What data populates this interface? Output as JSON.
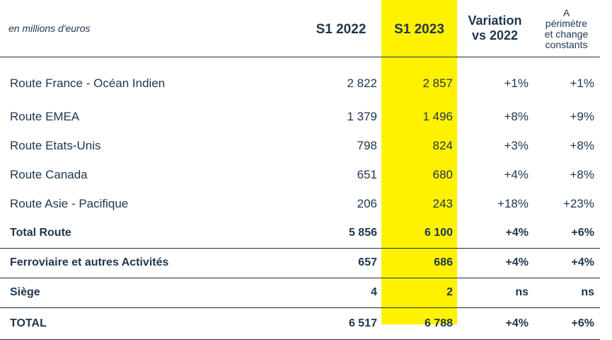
{
  "header": {
    "unit_label": "en millions d'euros",
    "col_s1_2022": "S1 2022",
    "col_s1_2023": "S1 2023",
    "col_variation_line1": "Variation",
    "col_variation_line2": "vs 2022",
    "col_constant_line1": "A",
    "col_constant_line2": "périmètre",
    "col_constant_line3": "et change",
    "col_constant_line4": "constants"
  },
  "rows": [
    {
      "label": "Route France - Océan Indien",
      "s1_2022": "2 822",
      "s1_2023": "2 857",
      "variation": "+1%",
      "constant": "+1%"
    },
    {
      "label": "Route EMEA",
      "s1_2022": "1 379",
      "s1_2023": "1 496",
      "variation": "+8%",
      "constant": "+9%"
    },
    {
      "label": "Route Etats-Unis",
      "s1_2022": "798",
      "s1_2023": "824",
      "variation": "+3%",
      "constant": "+8%"
    },
    {
      "label": "Route Canada",
      "s1_2022": "651",
      "s1_2023": "680",
      "variation": "+4%",
      "constant": "+8%"
    },
    {
      "label": "Route Asie - Pacifique",
      "s1_2022": "206",
      "s1_2023": "243",
      "variation": "+18%",
      "constant": "+23%"
    },
    {
      "label": "Total Route",
      "s1_2022": "5 856",
      "s1_2023": "6 100",
      "variation": "+4%",
      "constant": "+6%"
    },
    {
      "label": "Ferroviaire et autres Activités",
      "s1_2022": "657",
      "s1_2023": "686",
      "variation": "+4%",
      "constant": "+4%"
    },
    {
      "label": "Siège",
      "s1_2022": "4",
      "s1_2023": "2",
      "variation": "ns",
      "constant": "ns"
    },
    {
      "label": "TOTAL",
      "s1_2022": "6 517",
      "s1_2023": "6 788",
      "variation": "+4%",
      "constant": "+6%"
    }
  ],
  "colors": {
    "highlight": "#fff200",
    "text": "#1f3550"
  }
}
